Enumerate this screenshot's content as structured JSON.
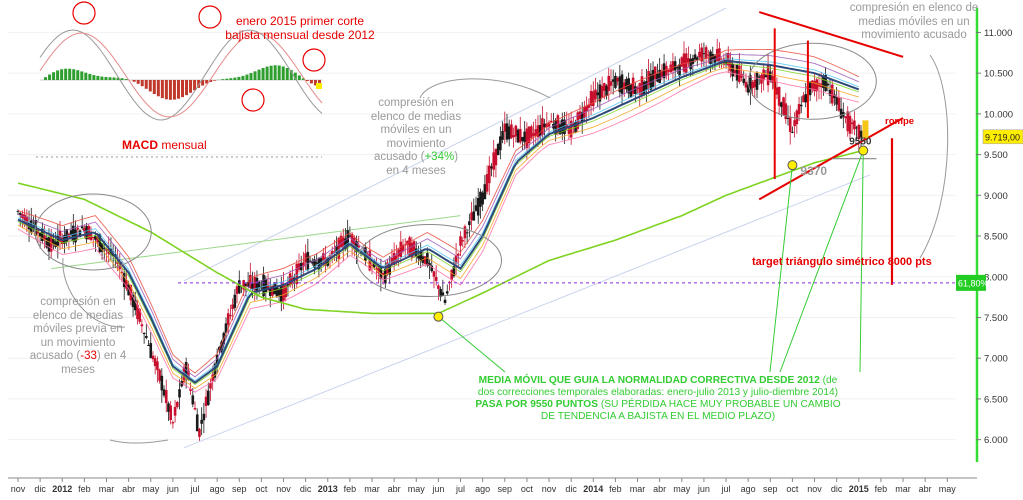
{
  "colors": {
    "candles": "#c8102e",
    "ma_main": "#2d4a7a",
    "ma_long": "#7ed321",
    "annotation_red": "#e60000",
    "annotation_green": "#33cc33",
    "annotation_gray": "#9a9a9a",
    "channel": "#c8d3ec",
    "target_line": "#8a2be2",
    "macd_pos": "#2e9e2e",
    "macd_neg": "#c0392b"
  },
  "chart_data": {
    "type": "candlestick",
    "x_labels": [
      "nov",
      "dic",
      "2012",
      "feb",
      "mar",
      "abr",
      "may",
      "jun",
      "jul",
      "ago",
      "sep",
      "oct",
      "nov",
      "dic",
      "2013",
      "feb",
      "mar",
      "abr",
      "may",
      "jun",
      "jul",
      "ago",
      "sep",
      "oct",
      "nov",
      "dic",
      "2014",
      "feb",
      "mar",
      "abr",
      "may",
      "jun",
      "jul",
      "ago",
      "sep",
      "oct",
      "nov",
      "dic",
      "2015",
      "feb",
      "mar",
      "abr",
      "may"
    ],
    "y_ticks": [
      "11.000",
      "10.500",
      "10.000",
      "9.500",
      "9.000",
      "8.500",
      "8.000",
      "7.500",
      "7.000",
      "6.500",
      "6.000"
    ],
    "y_tick_values": [
      11000,
      10500,
      10000,
      9500,
      9000,
      8500,
      8000,
      7500,
      7000,
      6500,
      6000
    ],
    "ylim": [
      5750,
      11300
    ],
    "last_price_label": "9.719,00",
    "last_price": 9719,
    "level_label": "61,80%",
    "level_value": 7925,
    "close_path": [
      {
        "x": 0,
        "y": 8800
      },
      {
        "x": 1.5,
        "y": 8400
      },
      {
        "x": 3,
        "y": 8600
      },
      {
        "x": 4.5,
        "y": 8200
      },
      {
        "x": 5.5,
        "y": 7500
      },
      {
        "x": 6.5,
        "y": 6700
      },
      {
        "x": 7,
        "y": 6200
      },
      {
        "x": 7.6,
        "y": 6900
      },
      {
        "x": 8.2,
        "y": 6100
      },
      {
        "x": 9,
        "y": 7000
      },
      {
        "x": 10,
        "y": 7900
      },
      {
        "x": 11,
        "y": 7900
      },
      {
        "x": 12,
        "y": 7800
      },
      {
        "x": 13,
        "y": 8200
      },
      {
        "x": 14,
        "y": 8200
      },
      {
        "x": 15,
        "y": 8500
      },
      {
        "x": 16.5,
        "y": 8000
      },
      {
        "x": 17.5,
        "y": 8400
      },
      {
        "x": 18.5,
        "y": 8200
      },
      {
        "x": 19.3,
        "y": 7700
      },
      {
        "x": 20,
        "y": 8400
      },
      {
        "x": 21,
        "y": 9000
      },
      {
        "x": 22,
        "y": 9800
      },
      {
        "x": 23,
        "y": 9700
      },
      {
        "x": 24,
        "y": 9900
      },
      {
        "x": 25,
        "y": 9800
      },
      {
        "x": 26,
        "y": 10200
      },
      {
        "x": 27,
        "y": 10400
      },
      {
        "x": 28,
        "y": 10300
      },
      {
        "x": 29,
        "y": 10500
      },
      {
        "x": 30,
        "y": 10600
      },
      {
        "x": 31,
        "y": 10750
      },
      {
        "x": 32,
        "y": 10650
      },
      {
        "x": 33,
        "y": 10350
      },
      {
        "x": 34,
        "y": 10500
      },
      {
        "x": 35,
        "y": 9800
      },
      {
        "x": 35.7,
        "y": 10300
      },
      {
        "x": 36.5,
        "y": 10400
      },
      {
        "x": 37.5,
        "y": 9900
      },
      {
        "x": 38.2,
        "y": 9719
      }
    ],
    "ma_main": [
      {
        "x": 0,
        "y": 8700
      },
      {
        "x": 2,
        "y": 8450
      },
      {
        "x": 3.5,
        "y": 8550
      },
      {
        "x": 5,
        "y": 8050
      },
      {
        "x": 6,
        "y": 7500
      },
      {
        "x": 7,
        "y": 6900
      },
      {
        "x": 8,
        "y": 6700
      },
      {
        "x": 9,
        "y": 6900
      },
      {
        "x": 10.5,
        "y": 7800
      },
      {
        "x": 12,
        "y": 7900
      },
      {
        "x": 13.5,
        "y": 8100
      },
      {
        "x": 15,
        "y": 8400
      },
      {
        "x": 16.5,
        "y": 8100
      },
      {
        "x": 18.5,
        "y": 8350
      },
      {
        "x": 20,
        "y": 8100
      },
      {
        "x": 21,
        "y": 8500
      },
      {
        "x": 22.5,
        "y": 9400
      },
      {
        "x": 24,
        "y": 9750
      },
      {
        "x": 26,
        "y": 9950
      },
      {
        "x": 28,
        "y": 10200
      },
      {
        "x": 30,
        "y": 10450
      },
      {
        "x": 32,
        "y": 10650
      },
      {
        "x": 34,
        "y": 10600
      },
      {
        "x": 36,
        "y": 10500
      },
      {
        "x": 38,
        "y": 10300
      }
    ],
    "ma_long": [
      {
        "x": 0,
        "y": 9150
      },
      {
        "x": 3,
        "y": 8950
      },
      {
        "x": 6,
        "y": 8550
      },
      {
        "x": 9,
        "y": 8050
      },
      {
        "x": 11,
        "y": 7750
      },
      {
        "x": 13,
        "y": 7600
      },
      {
        "x": 16,
        "y": 7550
      },
      {
        "x": 19,
        "y": 7550
      },
      {
        "x": 21,
        "y": 7800
      },
      {
        "x": 24,
        "y": 8200
      },
      {
        "x": 27,
        "y": 8450
      },
      {
        "x": 30,
        "y": 8750
      },
      {
        "x": 32,
        "y": 9000
      },
      {
        "x": 34,
        "y": 9200
      },
      {
        "x": 36,
        "y": 9400
      },
      {
        "x": 38.2,
        "y": 9550
      }
    ],
    "key_points": [
      {
        "label": "9370",
        "x": 35,
        "y": 9370
      },
      {
        "label": "9550",
        "x": 38.2,
        "y": 9550
      },
      {
        "label": "",
        "x": 19,
        "y": 7510
      }
    ],
    "triangle": {
      "upper": [
        {
          "x": 33.5,
          "y": 11250
        },
        {
          "x": 40,
          "y": 10700
        }
      ],
      "lower": [
        {
          "x": 33.5,
          "y": 8950
        },
        {
          "x": 40,
          "y": 9950
        }
      ],
      "height_line": {
        "x": 34.2,
        "y1": 11050,
        "y2": 9200
      },
      "target_line": {
        "x": 39.5,
        "y1": 9700,
        "y2": 7900
      }
    }
  },
  "annotations": {
    "macd_label": "MACD",
    "macd_label_rest": " mensual",
    "macd_note_line1": "enero 2015 primer corte",
    "macd_note_line2": "bajista mensual desde 2012",
    "left_compression_1": "compresión en",
    "left_compression_2": "elenco de medias",
    "left_compression_3": "móviles previa en",
    "left_compression_4": "un movimiento",
    "left_compression_5": "acusado (",
    "left_compression_value": "-33",
    "left_compression_6": ") en 4",
    "left_compression_7": "meses",
    "mid_compression_1": "compresión en",
    "mid_compression_2": "elenco de medias",
    "mid_compression_3": "móviles en un",
    "mid_compression_4": "movimiento",
    "mid_compression_5": "acusado (",
    "mid_compression_value": "+34%",
    "mid_compression_6": ")",
    "mid_compression_7": "en 4 meses",
    "right_compression_1": "compresión en elenco de",
    "right_compression_2": "medias móviles en un",
    "right_compression_3": "movimiento acusado",
    "rompe": "rompe",
    "target_text": "target triángulo simétrico 8000 pts",
    "ma_note_1": "MEDIA MÓVIL QUE GUIA LA NORMALIDAD CORRECTIVA DESDE 2012",
    "ma_note_2": " (de",
    "ma_note_3": "dos correcciones temporales elaboradas: enero-julio 2013 y julio-diembre 2014)",
    "ma_note_4": "PASA POR 9550 PUNTOS",
    "ma_note_5": " (SU PÉRDIDA HACE MUY PROBABLE UN CAMBIO",
    "ma_note_6": "DE TENDENCIA A BAJISTA EN EL MEDIO PLAZO)"
  }
}
